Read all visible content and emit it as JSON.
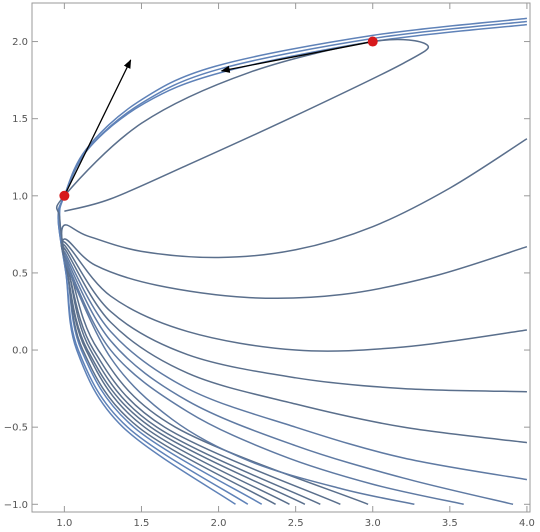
{
  "chart_data": {
    "type": "line",
    "xlim": [
      0.79,
      4.02
    ],
    "ylim": [
      -1.05,
      2.25
    ],
    "xticks": [
      {
        "value": 1,
        "label": "1.0"
      },
      {
        "value": 1.5,
        "label": "1.5"
      },
      {
        "value": 2,
        "label": "2.0"
      },
      {
        "value": 2.5,
        "label": "2.5"
      },
      {
        "value": 3,
        "label": "3.0"
      },
      {
        "value": 3.5,
        "label": "3.5"
      },
      {
        "value": 4,
        "label": "4.0"
      }
    ],
    "yticks": [
      {
        "value": -1,
        "label": "−1.0"
      },
      {
        "value": -0.5,
        "label": "−0.5"
      },
      {
        "value": 0,
        "label": "0.0"
      },
      {
        "value": 0.5,
        "label": "0.5"
      },
      {
        "value": 1,
        "label": "1.0"
      },
      {
        "value": 1.5,
        "label": "1.5"
      },
      {
        "value": 2,
        "label": "2.0"
      }
    ],
    "series": [
      {
        "color": "#5f82b8",
        "x": [
          2.11,
          1.38,
          1.08,
          1.01,
          0.96,
          1.0,
          1.15,
          1.5,
          2.0,
          3.0,
          4.0
        ],
        "values": [
          -1,
          -0.5,
          0,
          0.5,
          0.85,
          1.0,
          1.3,
          1.6,
          1.82,
          2.02,
          2.13
        ]
      },
      {
        "color": "#5f82b8",
        "x": [
          2.19,
          1.41,
          1.09,
          1.01,
          0.96,
          1.0,
          1.16,
          1.52,
          2.02,
          3.0,
          4.0
        ],
        "values": [
          -1,
          -0.5,
          0,
          0.5,
          0.85,
          1.0,
          1.31,
          1.6,
          1.8,
          2.0,
          2.11
        ]
      },
      {
        "color": "#5f82b8",
        "x": [
          2.28,
          1.45,
          1.11,
          1.02,
          0.97,
          1.0,
          1.14,
          1.48,
          1.98,
          3.0,
          4.0
        ],
        "values": [
          -1,
          -0.5,
          0,
          0.5,
          0.85,
          1.0,
          1.3,
          1.61,
          1.84,
          2.04,
          2.15
        ]
      },
      {
        "color": "#5a6f8c",
        "x": [
          2.37,
          1.48,
          1.12,
          1.02,
          0.97,
          1.0,
          1.5,
          2.2,
          3.0,
          3.35,
          3.2,
          2.5,
          1.8,
          1.3,
          1.0
        ],
        "values": [
          -1,
          -0.5,
          0,
          0.5,
          0.85,
          1.0,
          1.47,
          1.8,
          2.0,
          1.98,
          1.86,
          1.52,
          1.2,
          0.98,
          0.9
        ]
      },
      {
        "color": "#5a6f8c",
        "x": [
          2.46,
          1.52,
          1.14,
          1.02,
          0.99,
          1.15,
          1.5,
          2.0,
          2.5,
          3.0,
          3.5,
          4.0
        ],
        "values": [
          -1,
          -0.5,
          0,
          0.5,
          0.8,
          0.74,
          0.64,
          0.6,
          0.65,
          0.8,
          1.05,
          1.37
        ]
      },
      {
        "color": "#5a6f8c",
        "x": [
          2.56,
          1.56,
          1.15,
          1.02,
          1.0,
          1.2,
          1.6,
          2.2,
          2.8,
          3.4,
          4.0
        ],
        "values": [
          -1,
          -0.5,
          0,
          0.5,
          0.72,
          0.55,
          0.42,
          0.34,
          0.36,
          0.48,
          0.67
        ]
      },
      {
        "color": "#5a6f8c",
        "x": [
          2.66,
          1.6,
          1.17,
          1.03,
          1.0,
          1.3,
          1.8,
          2.5,
          3.2,
          4.0
        ],
        "values": [
          -1,
          -0.5,
          0,
          0.5,
          0.7,
          0.35,
          0.12,
          0.0,
          0.02,
          0.13
        ]
      },
      {
        "color": "#5a6f8c",
        "x": [
          2.79,
          1.65,
          1.19,
          1.03,
          1.0,
          1.3,
          1.8,
          2.5,
          3.2,
          4.0
        ],
        "values": [
          -1,
          -0.5,
          0,
          0.5,
          0.68,
          0.25,
          -0.03,
          -0.18,
          -0.25,
          -0.27
        ]
      },
      {
        "color": "#5a6f8c",
        "x": [
          2.97,
          1.72,
          1.22,
          1.04,
          1.0,
          1.3,
          1.8,
          2.5,
          3.2,
          4.0
        ],
        "values": [
          -1,
          -0.5,
          0,
          0.5,
          0.66,
          0.18,
          -0.15,
          -0.35,
          -0.5,
          -0.6
        ]
      },
      {
        "color": "#5f7aa3",
        "x": [
          1.0,
          1.3,
          1.8,
          2.5,
          3.2,
          4.0
        ],
        "values": [
          0.64,
          0.12,
          -0.25,
          -0.5,
          -0.7,
          -0.84
        ]
      },
      {
        "color": "#5f7aa3",
        "x": [
          1.0,
          1.3,
          1.8,
          2.5,
          3.2,
          3.91
        ],
        "values": [
          0.62,
          0.06,
          -0.33,
          -0.62,
          -0.83,
          -1.0
        ]
      },
      {
        "color": "#5f7aa3",
        "x": [
          1.0,
          1.3,
          1.8,
          2.4,
          3.0,
          3.59
        ],
        "values": [
          0.6,
          0.0,
          -0.4,
          -0.68,
          -0.87,
          -1.0
        ]
      },
      {
        "color": "#5f7aa3",
        "x": [
          1.0,
          1.3,
          1.7,
          2.2,
          2.8,
          3.27
        ],
        "values": [
          0.58,
          -0.05,
          -0.45,
          -0.72,
          -0.9,
          -1.0
        ]
      }
    ],
    "arrows": [
      {
        "x": [
          1,
          1.43
        ],
        "y": [
          1,
          1.88
        ]
      },
      {
        "x": [
          3,
          2.02
        ],
        "y": [
          2,
          1.81
        ]
      }
    ],
    "points": {
      "color": "#d7191c",
      "x": [
        1,
        3
      ],
      "y": [
        1,
        2
      ]
    }
  }
}
